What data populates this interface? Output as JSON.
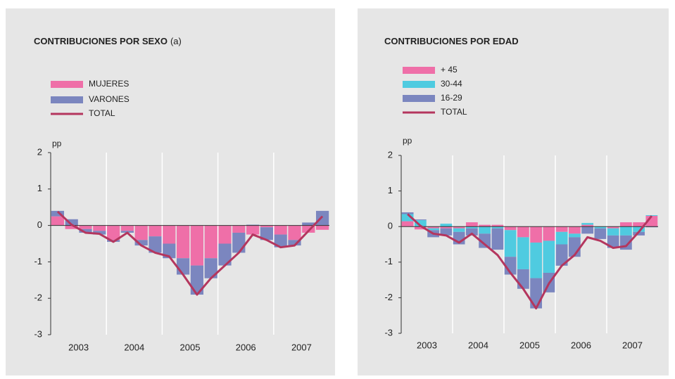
{
  "chart_data": [
    {
      "type": "bar",
      "stacked": true,
      "title": "CONTRIBUCIONES POR SEXO",
      "title_note": "(a)",
      "y_label": "pp",
      "groups": [
        "2003",
        "2004",
        "2005",
        "2006",
        "2007"
      ],
      "ylim": [
        -3,
        2
      ],
      "yticks": [
        -3,
        -2,
        -1,
        0,
        1,
        2
      ],
      "series": [
        {
          "name": "MUJERES",
          "color": "#ef6fa8",
          "values": [
            0.25,
            -0.1,
            -0.1,
            -0.15,
            -0.4,
            -0.15,
            -0.4,
            -0.3,
            -0.5,
            -0.9,
            -1.1,
            -0.9,
            -0.5,
            -0.2,
            -0.25,
            -0.05,
            -0.25,
            -0.4,
            -0.2,
            -0.12
          ]
        },
        {
          "name": "VARONES",
          "color": "#7b86bf",
          "values": [
            0.15,
            0.17,
            -0.1,
            -0.1,
            -0.05,
            -0.05,
            -0.15,
            -0.45,
            -0.4,
            -0.45,
            -0.8,
            -0.55,
            -0.6,
            -0.55,
            0.02,
            -0.35,
            -0.35,
            -0.15,
            0.08,
            0.4
          ]
        }
      ],
      "line": {
        "name": "TOTAL",
        "color": "#b4365e",
        "values": [
          0.38,
          0.02,
          -0.2,
          -0.23,
          -0.45,
          -0.2,
          -0.55,
          -0.75,
          -0.85,
          -1.35,
          -1.9,
          -1.45,
          -1.1,
          -0.75,
          -0.25,
          -0.4,
          -0.6,
          -0.55,
          -0.15,
          0.25
        ]
      }
    },
    {
      "type": "bar",
      "stacked": true,
      "title": "CONTRIBUCIONES POR EDAD",
      "y_label": "pp",
      "groups": [
        "2003",
        "2004",
        "2005",
        "2006",
        "2007"
      ],
      "ylim": [
        -3,
        2
      ],
      "yticks": [
        -3,
        -2,
        -1,
        0,
        1,
        2
      ],
      "series": [
        {
          "name": "+ 45",
          "color": "#ef6fa8",
          "values": [
            0.15,
            -0.08,
            -0.05,
            -0.05,
            -0.05,
            0.12,
            0.05,
            0.05,
            -0.1,
            -0.3,
            -0.45,
            -0.4,
            -0.15,
            -0.2,
            0.05,
            0.0,
            -0.05,
            0.12,
            0.12,
            0.3
          ]
        },
        {
          "name": "30-44",
          "color": "#4fcbe0",
          "values": [
            0.2,
            0.18,
            -0.05,
            0.08,
            -0.1,
            -0.05,
            -0.2,
            -0.05,
            -0.75,
            -0.9,
            -1.0,
            -0.9,
            -0.35,
            -0.1,
            0.05,
            -0.05,
            -0.2,
            -0.25,
            -0.15,
            0.02
          ]
        },
        {
          "name": "16-29",
          "color": "#7b86bf",
          "values": [
            0.05,
            0.02,
            -0.2,
            -0.2,
            -0.35,
            -0.2,
            -0.4,
            -0.6,
            -0.5,
            -0.55,
            -0.85,
            -0.55,
            -0.6,
            -0.55,
            -0.2,
            -0.3,
            -0.35,
            -0.4,
            -0.1,
            -0.02
          ]
        }
      ],
      "line": {
        "name": "TOTAL",
        "color": "#b4365e",
        "values": [
          0.35,
          0.02,
          -0.2,
          -0.25,
          -0.45,
          -0.2,
          -0.5,
          -0.8,
          -1.3,
          -1.75,
          -2.3,
          -1.6,
          -1.1,
          -0.8,
          -0.3,
          -0.4,
          -0.6,
          -0.55,
          -0.15,
          0.3
        ]
      }
    }
  ]
}
